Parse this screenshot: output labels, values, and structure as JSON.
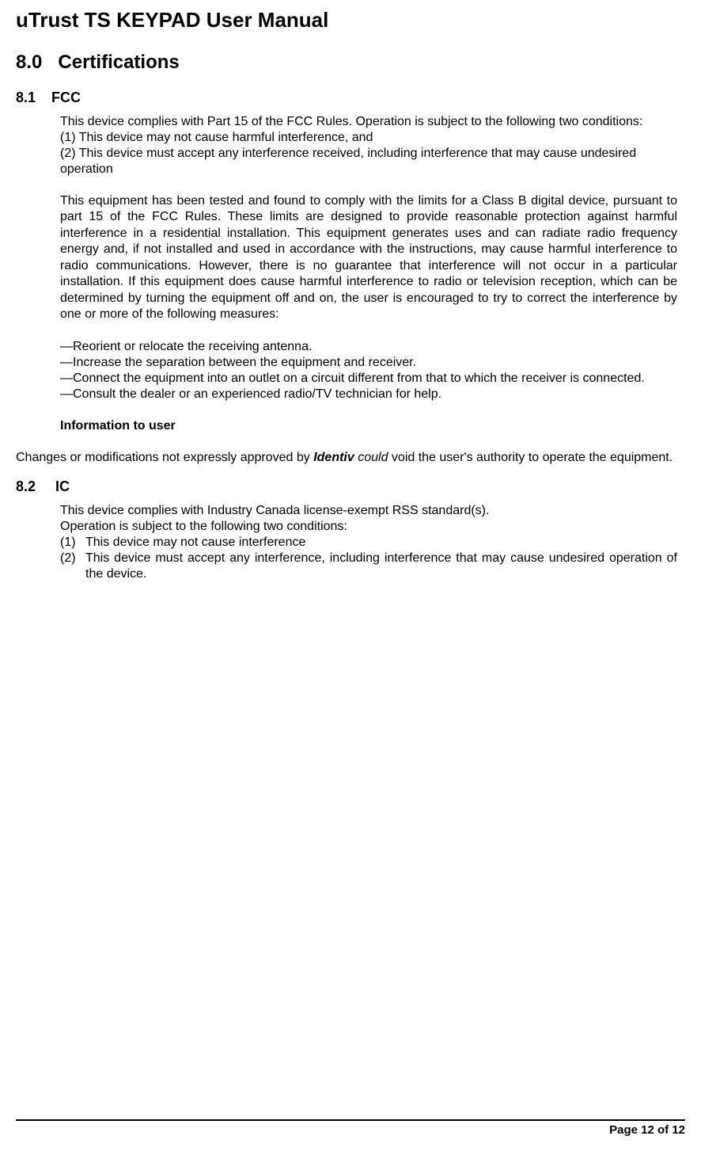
{
  "doc_title": "uTrust TS KEYPAD User Manual",
  "section": {
    "number": "8.0",
    "title": "Certifications"
  },
  "fcc": {
    "number": "8.1",
    "title": "FCC",
    "intro": "This device complies with Part 15 of the FCC Rules.  Operation is subject to the following two conditions:",
    "cond1": " (1)  This device may not cause harmful interference, and",
    "cond2": " (2)  This device must accept any interference received, including interference that may cause undesired operation",
    "body": "This equipment has been tested and found to comply with the limits for a Class B digital device, pursuant to part 15 of the FCC Rules. These limits are designed to provide reasonable protection against harmful interference in a residential installation. This equipment generates uses and can radiate radio frequency energy and, if not installed and used in accordance with the instructions, may cause harmful interference to radio communications. However, there is no guarantee that interference will not occur in a particular installation. If this equipment does cause harmful interference to radio or television reception, which can be determined by turning the equipment off and on, the user is encouraged to try to correct the interference by one or more of the following measures:",
    "m1": "—Reorient or relocate the receiving antenna.",
    "m2": "—Increase the separation between the equipment and receiver.",
    "m3": "—Connect the equipment into an outlet on a circuit different from that to which the receiver is connected.",
    "m4": "—Consult the dealer or an experienced radio/TV technician for help.",
    "info_heading": "Information to user",
    "info_p1": "Changes or modifications not expressly approved by ",
    "info_brand": "Identiv",
    "info_could": " could",
    "info_p2": " void the user's authority to operate the equipment."
  },
  "ic": {
    "number": "8.2",
    "title": "IC",
    "l1": "This device complies with Industry Canada license-exempt RSS standard(s).",
    "l2": "Operation is subject to the following two conditions:",
    "c1_num": "(1)",
    "c1_txt": "This device may not cause interference",
    "c2_num": "(2)",
    "c2_txt": "This device must accept any interference, including interference that may cause undesired operation of the device."
  },
  "footer": "Page 12 of 12"
}
